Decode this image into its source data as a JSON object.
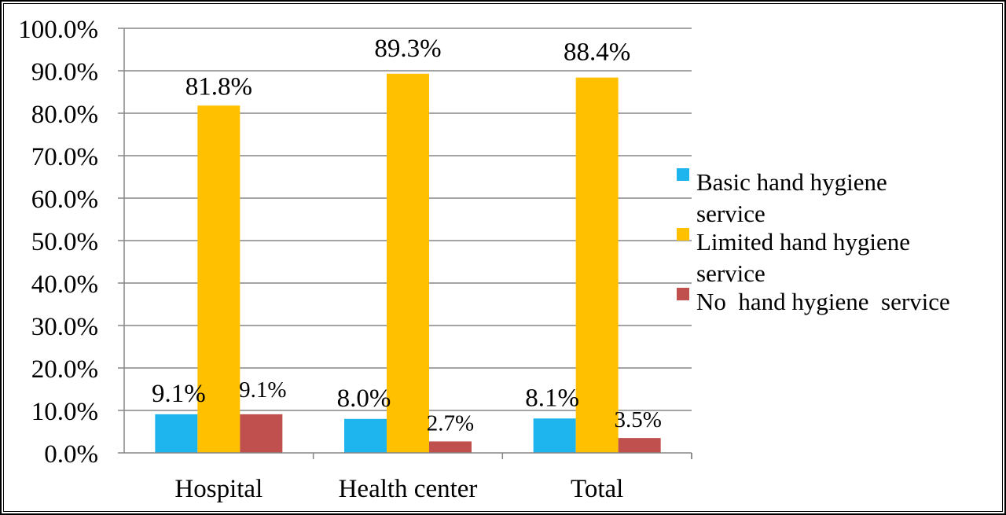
{
  "chart_data": {
    "type": "bar",
    "categories": [
      "Hospital",
      "Health center",
      "Total"
    ],
    "series": [
      {
        "name": "Basic hand hygiene service",
        "values": [
          9.1,
          8.0,
          8.1
        ],
        "labels": [
          "9.1%",
          "8.0%",
          "8.1%"
        ],
        "color": "#1EB4EE"
      },
      {
        "name": "Limited hand hygiene service",
        "values": [
          81.8,
          89.3,
          88.4
        ],
        "labels": [
          "81.8%",
          "89.3%",
          "88.4%"
        ],
        "color": "#FFC000"
      },
      {
        "name": "No  hand hygiene  service",
        "values": [
          9.1,
          2.7,
          3.5
        ],
        "labels": [
          "9.1%",
          "2.7%",
          "3.5%"
        ],
        "color": "#C0504D"
      }
    ],
    "legend": {
      "position": "right",
      "entries": [
        [
          "Basic hand hygiene",
          "service"
        ],
        [
          "Limited hand hygiene",
          "service"
        ],
        [
          "No  hand hygiene  service"
        ]
      ]
    },
    "ylim": [
      0,
      100
    ],
    "yticks": [
      0,
      10,
      20,
      30,
      40,
      50,
      60,
      70,
      80,
      90,
      100
    ],
    "ytick_labels": [
      "0.0%",
      "10.0%",
      "20.0%",
      "30.0%",
      "40.0%",
      "50.0%",
      "60.0%",
      "70.0%",
      "80.0%",
      "90.0%",
      "100.0%"
    ],
    "grid": true,
    "title": "",
    "xlabel": "",
    "ylabel": ""
  }
}
